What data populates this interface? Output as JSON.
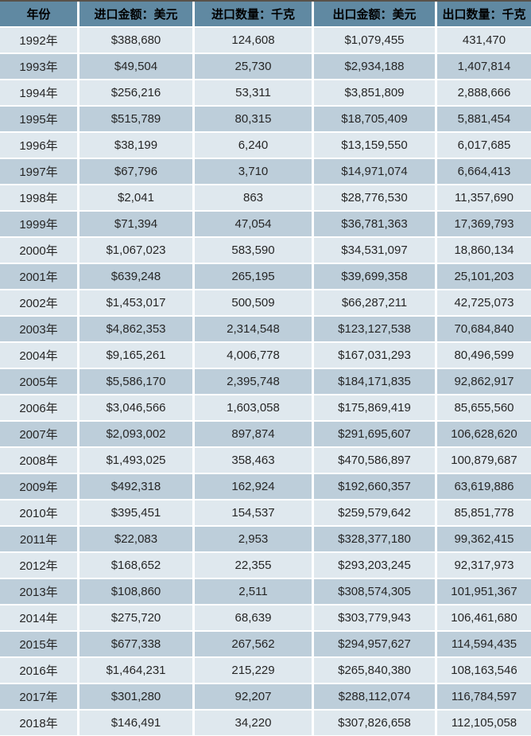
{
  "colors": {
    "header-bg": "#6089A2",
    "row-light": "#DFE8EE",
    "row-dark": "#BDCEDA",
    "grid-line": "#FFFFFF",
    "header-text": "#000000",
    "cell-text": "#262626",
    "top-edge": "#59524A"
  },
  "chart_data": {
    "type": "table",
    "columns": [
      "年份",
      "进口金额：美元",
      "进口数量：千克",
      "出口金额：美元",
      "出口数量：千克"
    ],
    "rows": [
      [
        "1992年",
        "$388,680",
        "124,608",
        "$1,079,455",
        "431,470"
      ],
      [
        "1993年",
        "$49,504",
        "25,730",
        "$2,934,188",
        "1,407,814"
      ],
      [
        "1994年",
        "$256,216",
        "53,311",
        "$3,851,809",
        "2,888,666"
      ],
      [
        "1995年",
        "$515,789",
        "80,315",
        "$18,705,409",
        "5,881,454"
      ],
      [
        "1996年",
        "$38,199",
        "6,240",
        "$13,159,550",
        "6,017,685"
      ],
      [
        "1997年",
        "$67,796",
        "3,710",
        "$14,971,074",
        "6,664,413"
      ],
      [
        "1998年",
        "$2,041",
        "863",
        "$28,776,530",
        "11,357,690"
      ],
      [
        "1999年",
        "$71,394",
        "47,054",
        "$36,781,363",
        "17,369,793"
      ],
      [
        "2000年",
        "$1,067,023",
        "583,590",
        "$34,531,097",
        "18,860,134"
      ],
      [
        "2001年",
        "$639,248",
        "265,195",
        "$39,699,358",
        "25,101,203"
      ],
      [
        "2002年",
        "$1,453,017",
        "500,509",
        "$66,287,211",
        "42,725,073"
      ],
      [
        "2003年",
        "$4,862,353",
        "2,314,548",
        "$123,127,538",
        "70,684,840"
      ],
      [
        "2004年",
        "$9,165,261",
        "4,006,778",
        "$167,031,293",
        "80,496,599"
      ],
      [
        "2005年",
        "$5,586,170",
        "2,395,748",
        "$184,171,835",
        "92,862,917"
      ],
      [
        "2006年",
        "$3,046,566",
        "1,603,058",
        "$175,869,419",
        "85,655,560"
      ],
      [
        "2007年",
        "$2,093,002",
        "897,874",
        "$291,695,607",
        "106,628,620"
      ],
      [
        "2008年",
        "$1,493,025",
        "358,463",
        "$470,586,897",
        "100,879,687"
      ],
      [
        "2009年",
        "$492,318",
        "162,924",
        "$192,660,357",
        "63,619,886"
      ],
      [
        "2010年",
        "$395,451",
        "154,537",
        "$259,579,642",
        "85,851,778"
      ],
      [
        "2011年",
        "$22,083",
        "2,953",
        "$328,377,180",
        "99,362,415"
      ],
      [
        "2012年",
        "$168,652",
        "22,355",
        "$293,203,245",
        "92,317,973"
      ],
      [
        "2013年",
        "$108,860",
        "2,511",
        "$308,574,305",
        "101,951,367"
      ],
      [
        "2014年",
        "$275,720",
        "68,639",
        "$303,779,943",
        "106,461,680"
      ],
      [
        "2015年",
        "$677,338",
        "267,562",
        "$294,957,627",
        "114,594,435"
      ],
      [
        "2016年",
        "$1,464,231",
        "215,229",
        "$265,840,380",
        "108,163,546"
      ],
      [
        "2017年",
        "$301,280",
        "92,207",
        "$288,112,074",
        "116,784,597"
      ],
      [
        "2018年",
        "$146,491",
        "34,220",
        "$307,826,658",
        "112,105,058"
      ]
    ]
  }
}
